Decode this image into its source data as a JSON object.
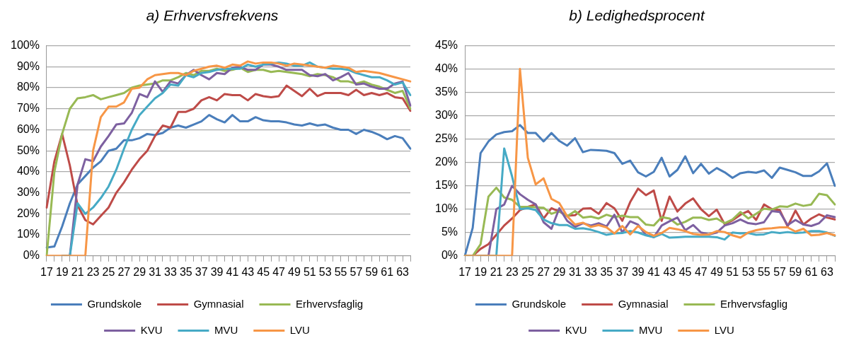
{
  "chart_data": [
    {
      "type": "line",
      "title": "a) Erhvervsfrekvens",
      "categories": [
        "17",
        null,
        "19",
        null,
        "21",
        null,
        "23",
        null,
        "25",
        null,
        "27",
        null,
        "29",
        null,
        "31",
        null,
        "33",
        null,
        "35",
        null,
        "37",
        null,
        "39",
        null,
        "41",
        null,
        "43",
        null,
        "45",
        null,
        "47",
        null,
        "49",
        null,
        "51",
        null,
        "53",
        null,
        "55",
        null,
        "57",
        null,
        "59",
        null,
        "61",
        null,
        "63",
        null
      ],
      "ylim": [
        0,
        100
      ],
      "yticks": [
        {
          "value": 0,
          "label": "0%"
        },
        {
          "value": 10,
          "label": "10%"
        },
        {
          "value": 20,
          "label": "20%"
        },
        {
          "value": 30,
          "label": "30%"
        },
        {
          "value": 40,
          "label": "40%"
        },
        {
          "value": 50,
          "label": "50%"
        },
        {
          "value": 60,
          "label": "60%"
        },
        {
          "value": 70,
          "label": "70%"
        },
        {
          "value": 80,
          "label": "80%"
        },
        {
          "value": 90,
          "label": "90%"
        },
        {
          "value": 100,
          "label": "100%"
        }
      ],
      "grid": "y",
      "legend": "bottom",
      "marker": "none",
      "line_style": "solid",
      "series": [
        {
          "name": "Grundskole",
          "color": "#4a7ebb",
          "values": [
            4,
            4.5,
            14,
            25,
            34,
            38,
            42,
            45,
            50,
            51,
            55,
            55,
            56,
            58,
            57.5,
            58.5,
            61,
            62,
            61,
            62.5,
            64,
            67,
            65,
            63.5,
            67,
            64,
            64,
            66,
            64.5,
            64,
            64,
            63.5,
            62.5,
            62,
            63,
            62,
            62.5,
            61,
            60,
            60,
            58,
            60,
            59,
            57.5,
            55.5,
            57,
            56,
            51
          ]
        },
        {
          "name": "Gymnasial",
          "color": "#be4b48",
          "values": [
            23,
            45,
            58,
            43,
            24,
            17,
            15,
            19,
            23,
            30,
            35,
            41,
            46,
            50,
            57,
            62,
            61,
            68.5,
            68.5,
            70,
            74,
            75.5,
            74,
            77,
            76.5,
            76.5,
            74,
            77,
            76,
            75.5,
            76,
            81,
            78.5,
            76,
            79.5,
            76,
            77.5,
            77.5,
            77.5,
            76.5,
            79,
            76.5,
            77.5,
            76.5,
            77.5,
            75.5,
            75,
            69
          ]
        },
        {
          "name": "Erhvervsfaglig",
          "color": "#98b954",
          "values": [
            0,
            40,
            58,
            70,
            75,
            75.5,
            76.5,
            74.5,
            75.5,
            76.5,
            77.5,
            80,
            81,
            81.5,
            82,
            83.5,
            83.5,
            85,
            87,
            86,
            88,
            88,
            89,
            88,
            88.5,
            89.5,
            87.5,
            88.5,
            88.5,
            87.5,
            88,
            87.5,
            87,
            86.5,
            85.5,
            86.5,
            86,
            85,
            83,
            83,
            82,
            83,
            81.5,
            80.5,
            79,
            77.5,
            78.5,
            70
          ]
        },
        {
          "name": "KVU",
          "color": "#7d60a0",
          "values": [
            null,
            null,
            0,
            0,
            34,
            46,
            45,
            52,
            57,
            62.5,
            63,
            68,
            77,
            75.5,
            83,
            78,
            83,
            82,
            86,
            88.5,
            86,
            84,
            87,
            86.5,
            89.5,
            90,
            88.5,
            88.5,
            91,
            91,
            90,
            88.5,
            88.5,
            88.5,
            86,
            85.5,
            86.5,
            83.5,
            85,
            87,
            81.5,
            82,
            80.5,
            79.5,
            79.5,
            82,
            83,
            71.5
          ]
        },
        {
          "name": "MVU",
          "color": "#46aac5",
          "values": [
            null,
            null,
            0,
            0,
            25,
            20,
            23,
            27.5,
            33,
            41,
            51,
            60,
            67,
            71,
            75,
            77.5,
            81.5,
            81,
            86,
            85,
            87,
            87.5,
            88.5,
            89,
            89,
            89,
            91,
            90,
            91,
            91.5,
            92,
            91.5,
            90.5,
            90.5,
            92,
            90,
            89.5,
            89,
            89,
            88.5,
            87,
            86,
            85,
            85,
            83.5,
            81.5,
            82.5,
            76.5
          ]
        },
        {
          "name": "LVU",
          "color": "#f79646",
          "values": [
            0,
            0,
            0,
            0,
            0,
            0,
            50,
            66,
            71,
            71,
            73,
            79.5,
            80,
            84,
            86,
            86.5,
            87,
            87,
            86,
            88,
            89,
            90,
            90.5,
            89.5,
            91,
            90.5,
            92.5,
            91.5,
            92,
            92,
            91.5,
            90.5,
            91.5,
            91,
            90.5,
            90,
            89.5,
            90.5,
            90,
            89.5,
            87.5,
            88,
            87.5,
            87,
            86,
            85,
            84,
            83
          ]
        }
      ]
    },
    {
      "type": "line",
      "title": "b) Ledighedsprocent",
      "categories": [
        "17",
        null,
        "19",
        null,
        "21",
        null,
        "23",
        null,
        "25",
        null,
        "27",
        null,
        "29",
        null,
        "31",
        null,
        "33",
        null,
        "35",
        null,
        "37",
        null,
        "39",
        null,
        "41",
        null,
        "43",
        null,
        "45",
        null,
        "47",
        null,
        "49",
        null,
        "51",
        null,
        "53",
        null,
        "55",
        null,
        "57",
        null,
        "59",
        null,
        "61",
        null,
        "63",
        null
      ],
      "ylim": [
        0,
        45
      ],
      "yticks": [
        {
          "value": 0,
          "label": "0%"
        },
        {
          "value": 5,
          "label": "5%"
        },
        {
          "value": 10,
          "label": "10%"
        },
        {
          "value": 15,
          "label": "15%"
        },
        {
          "value": 20,
          "label": "20%"
        },
        {
          "value": 25,
          "label": "25%"
        },
        {
          "value": 30,
          "label": "30%"
        },
        {
          "value": 35,
          "label": "35%"
        },
        {
          "value": 40,
          "label": "40%"
        },
        {
          "value": 45,
          "label": "45%"
        }
      ],
      "grid": "y",
      "legend": "bottom",
      "marker": "none",
      "line_style": "solid",
      "series": [
        {
          "name": "Grundskole",
          "color": "#4a7ebb",
          "values": [
            0,
            6,
            22,
            24.5,
            26,
            26.5,
            26.7,
            28,
            26.3,
            26.3,
            24.5,
            26.3,
            24.6,
            23.6,
            25.2,
            22.2,
            22.7,
            22.6,
            22.5,
            22,
            19.7,
            20.4,
            17.9,
            17,
            18,
            21,
            17,
            18.4,
            21.3,
            17.7,
            19.7,
            17.6,
            18.8,
            17.9,
            16.7,
            17.7,
            18,
            17.8,
            18.3,
            16.7,
            18.9,
            18.4,
            17.9,
            17.1,
            17.1,
            18.1,
            19.8,
            15
          ]
        },
        {
          "name": "Gymnasial",
          "color": "#be4b48",
          "values": [
            0,
            0,
            1.5,
            2.5,
            4.5,
            6.5,
            8,
            9.8,
            10.5,
            11,
            8,
            10.2,
            9.5,
            8.6,
            8.7,
            10.1,
            10.2,
            9,
            11.3,
            10.2,
            7.5,
            11.5,
            14.4,
            13,
            14,
            7.5,
            12.7,
            9.5,
            11.2,
            12.3,
            10,
            8.5,
            9.9,
            6.8,
            7.6,
            8.8,
            9.6,
            7.7,
            11,
            10,
            9.8,
            6.3,
            9.7,
            6.7,
            8,
            8.9,
            8.2,
            7.8
          ]
        },
        {
          "name": "Erhvervsfaglig",
          "color": "#98b954",
          "values": [
            0,
            0,
            2.5,
            12.7,
            14.6,
            12.5,
            12,
            10.5,
            10.5,
            10.4,
            10.3,
            9,
            9.6,
            8.5,
            9.6,
            8.2,
            8.4,
            8,
            8.8,
            8.3,
            8.6,
            8.3,
            8.3,
            6.7,
            6.5,
            8.3,
            8,
            6.7,
            7.3,
            8.2,
            8.2,
            7.7,
            8,
            7,
            7.8,
            9.4,
            8,
            9,
            10.1,
            9.9,
            10.6,
            10.5,
            11.2,
            10.7,
            11,
            13.3,
            13,
            11
          ]
        },
        {
          "name": "KVU",
          "color": "#7d60a0",
          "values": [
            null,
            null,
            0,
            0,
            10,
            11,
            15,
            13.2,
            12,
            11,
            7.2,
            5.8,
            10.2,
            7.5,
            6.2,
            7,
            6.5,
            7,
            6.3,
            8.8,
            5,
            7.4,
            6.7,
            4.5,
            4,
            6.5,
            7.4,
            8.2,
            5.5,
            6.6,
            5,
            4.6,
            5,
            6.5,
            7,
            7.8,
            7,
            6.8,
            7.2,
            9.6,
            9.4,
            6.6,
            7.7,
            6.7,
            6.4,
            7,
            8.7,
            8.3
          ]
        },
        {
          "name": "MVU",
          "color": "#46aac5",
          "values": [
            0,
            0,
            0,
            0,
            0,
            23,
            17,
            10,
            10.2,
            9.8,
            7.8,
            7,
            6.6,
            6.6,
            5.8,
            5.9,
            5.6,
            5.1,
            4.5,
            4.8,
            4.9,
            5.3,
            5,
            4.4,
            4,
            4.7,
            3.9,
            4,
            4.1,
            4.1,
            4.1,
            4.1,
            4,
            3.5,
            5,
            4.8,
            4.9,
            4.5,
            4.6,
            5.1,
            4.9,
            5.1,
            4.9,
            5,
            5.3,
            5.3,
            5,
            4.3
          ]
        },
        {
          "name": "LVU",
          "color": "#f79646",
          "values": [
            0,
            0,
            0,
            0,
            0,
            0,
            0,
            40,
            21,
            15.3,
            16.6,
            12.2,
            11.3,
            8.5,
            6.7,
            7.1,
            6.2,
            6.6,
            6.1,
            4.8,
            6.4,
            4.6,
            6.4,
            5.1,
            4.3,
            4.9,
            6,
            5.7,
            5.3,
            4.7,
            4.5,
            4.6,
            5.3,
            5.1,
            4.4,
            3.9,
            5,
            5.5,
            5.8,
            5.9,
            6.1,
            6.1,
            5.2,
            5.8,
            4.4,
            4.5,
            4.9,
            4.4
          ]
        }
      ]
    }
  ]
}
